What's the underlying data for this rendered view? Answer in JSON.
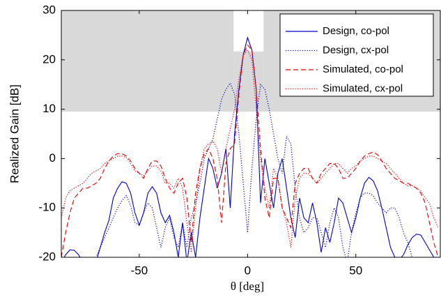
{
  "chart_data": {
    "type": "line",
    "xlabel": "θ [deg]",
    "ylabel": "Realized Gain [dB]",
    "x": [
      -86,
      -84,
      -82,
      -80,
      -78,
      -76,
      -74,
      -72,
      -70,
      -68,
      -66,
      -64,
      -62,
      -60,
      -58,
      -56,
      -54,
      -52,
      -50,
      -48,
      -46,
      -44,
      -42,
      -40,
      -38,
      -36,
      -34,
      -32,
      -30,
      -28,
      -26,
      -24,
      -22,
      -20,
      -18,
      -16,
      -14,
      -12,
      -10,
      -8,
      -6,
      -4,
      -2,
      0,
      2,
      4,
      6,
      8,
      10,
      12,
      14,
      16,
      18,
      20,
      22,
      24,
      26,
      28,
      30,
      32,
      34,
      36,
      38,
      40,
      42,
      44,
      46,
      48,
      50,
      52,
      54,
      56,
      58,
      60,
      62,
      64,
      66,
      68,
      70,
      72,
      74,
      76,
      78,
      80,
      82,
      84,
      86,
      88
    ],
    "xlim": [
      -86,
      89
    ],
    "xticks": [
      -50,
      0,
      50
    ],
    "ylim": [
      -20,
      30
    ],
    "yticks": [
      -20,
      -10,
      0,
      10,
      20,
      30
    ],
    "legend": "upper right",
    "mask": [
      {
        "x": [
          -86,
          -6.5
        ],
        "y": [
          9.5,
          30
        ]
      },
      {
        "x": [
          -6.5,
          7.4
        ],
        "y": [
          9.5,
          21.7
        ]
      },
      {
        "x": [
          7.4,
          89
        ],
        "y": [
          9.5,
          30
        ]
      }
    ],
    "mask_color": "#d9d9d9",
    "series": [
      {
        "name": "Design, co-pol",
        "color": "#0000cc",
        "style": "solid",
        "values": [
          -21,
          -19.5,
          -18.5,
          -18.6,
          -19.5,
          -21,
          -22,
          -22,
          -21,
          -18,
          -15,
          -12.5,
          -8,
          -6,
          -4.7,
          -5,
          -7,
          -11,
          -13.5,
          -11,
          -7,
          -5.7,
          -7,
          -11,
          -13,
          -11.5,
          -15,
          -20,
          -13,
          -21,
          -15,
          -20,
          -12,
          -6,
          0,
          -2,
          -6,
          -3,
          2,
          -10,
          5,
          14,
          21,
          24.5,
          22,
          14,
          -9,
          0,
          -5,
          -10,
          -3,
          0,
          -6,
          -12,
          -16,
          -8,
          -12,
          -13,
          -9,
          -13,
          -19,
          -14,
          -17,
          -13,
          -8,
          -9,
          -12,
          -15,
          -12,
          -8,
          -5,
          -3.8,
          -4.5,
          -6.5,
          -10,
          -14,
          -18,
          -20,
          -20.5,
          -19.5,
          -17.5,
          -16,
          -15.3,
          -15.5,
          -17,
          -18.5,
          -20,
          -21
        ]
      },
      {
        "name": "Design, cx-pol",
        "color": "#0000cc",
        "style": "dotted",
        "values": [
          -25,
          -25,
          -25,
          -25,
          -25,
          -24,
          -22,
          -21,
          -20,
          -18,
          -16,
          -14,
          -12,
          -10,
          -8.5,
          -7.5,
          -9.5,
          -13,
          -13.5,
          -11,
          -9,
          -10,
          -14,
          -18,
          -14,
          -12,
          -16,
          -18,
          -13,
          -18,
          -12,
          -9,
          -5,
          0,
          2,
          4,
          8,
          12,
          14,
          15.3,
          13,
          5,
          -5,
          -15,
          -2,
          8,
          15,
          14,
          10,
          5,
          0,
          -3,
          4.5,
          3,
          -6,
          -12,
          -15,
          -14,
          -12,
          -12,
          -15,
          -18,
          -13,
          -10,
          -12,
          -18,
          -21,
          -15,
          -11,
          -8,
          -7,
          -7,
          -7.5,
          -9,
          -10,
          -11,
          -10,
          -10,
          -12,
          -15,
          -17,
          -20,
          -23,
          -25,
          -25,
          -25,
          -25,
          -25
        ]
      },
      {
        "name": "Simulated, co-pol",
        "color": "#dd0000",
        "style": "dashed",
        "values": [
          -20,
          -15,
          -11,
          -8,
          -7,
          -6,
          -6,
          -5.5,
          -5,
          -4,
          -2,
          -0.5,
          0.5,
          1,
          1,
          0.5,
          -0.5,
          -2,
          -3,
          -4,
          -2,
          -0.5,
          -0.5,
          -1.5,
          -4,
          -6,
          -7,
          -5,
          -4,
          -8,
          -17,
          -7,
          -2,
          1,
          2,
          0,
          -4,
          -13,
          -1,
          2,
          3,
          13,
          21,
          23,
          22,
          14,
          2,
          -8,
          -12,
          -4,
          -4,
          -10,
          -12,
          -14,
          -5,
          -3,
          -2,
          -2,
          -4,
          -5,
          -3,
          -2,
          -1,
          -1,
          -2,
          -4,
          -4,
          -3,
          -2,
          -0.5,
          0.5,
          1,
          1.3,
          0.8,
          -0.5,
          -2,
          -3,
          -4,
          -4.5,
          -5,
          -5,
          -5.5,
          -6,
          -7,
          -9,
          -13,
          -17,
          -20
        ]
      },
      {
        "name": "Simulated, cx-pol",
        "color": "#dd0000",
        "style": "dotted",
        "values": [
          -12,
          -8,
          -6.5,
          -6,
          -5.5,
          -5,
          -4,
          -3,
          -2.5,
          -2,
          -1,
          -0.5,
          0,
          0.5,
          0.5,
          0.2,
          -1,
          -2.5,
          -3,
          -3.5,
          -2.5,
          -1.5,
          -1.5,
          -2.5,
          -5,
          -5,
          -6,
          -4,
          -6,
          -13,
          -19,
          -10,
          -2,
          2,
          3,
          3.5,
          2,
          -3,
          2,
          6,
          10,
          16,
          21,
          22,
          20,
          10,
          0,
          -6,
          -10,
          -2,
          -4,
          -10,
          -13,
          -18,
          -8,
          -4,
          -3,
          -3,
          -4,
          -5,
          -4,
          -3,
          -2,
          -1,
          -1,
          -2,
          -3,
          -2,
          -1.5,
          -0.5,
          0,
          0.5,
          0.5,
          0,
          -0.5,
          -1,
          -2,
          -3,
          -4,
          -5,
          -5.5,
          -5.5,
          -6,
          -6.5,
          -8,
          -9,
          -12,
          -14
        ]
      }
    ]
  }
}
